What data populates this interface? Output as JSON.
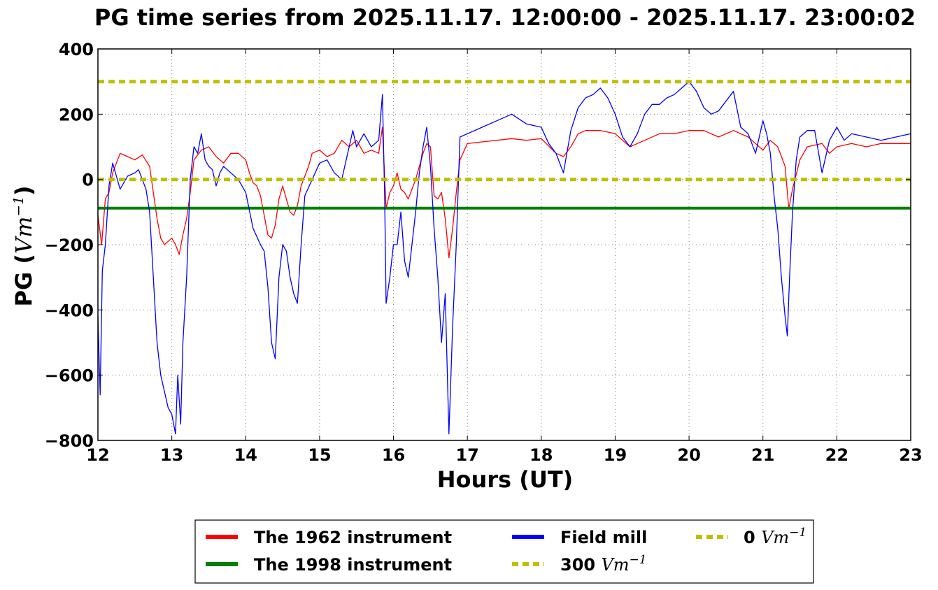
{
  "chart_data": {
    "type": "line",
    "title": "PG time series from 2025.11.17. 12:00:00 - 2025.11.17. 23:00:02",
    "xlabel": "Hours (UT)",
    "ylabel_main": "PG (",
    "ylabel_unit_base": "Vm",
    "ylabel_unit_exp": "−1",
    "ylabel_close": ")",
    "xlim": [
      12,
      23
    ],
    "ylim": [
      -800,
      400
    ],
    "x_ticks": [
      12,
      13,
      14,
      15,
      16,
      17,
      18,
      19,
      20,
      21,
      22,
      23
    ],
    "y_ticks": [
      400,
      200,
      0,
      -200,
      -400,
      -600,
      -800
    ],
    "y_tick_labels": [
      "400",
      "200",
      "0",
      "−200",
      "−400",
      "−600",
      "−800"
    ],
    "grid": true,
    "legend_placement": "bottom-center, outside plot",
    "series": [
      {
        "name": "The 1962 instrument",
        "color": "#ff0000",
        "style": "solid",
        "x": [
          12.0,
          12.05,
          12.1,
          12.15,
          12.2,
          12.3,
          12.4,
          12.5,
          12.6,
          12.7,
          12.75,
          12.8,
          12.85,
          12.9,
          12.95,
          13.0,
          13.05,
          13.1,
          13.15,
          13.2,
          13.25,
          13.3,
          13.4,
          13.5,
          13.6,
          13.7,
          13.8,
          13.9,
          14.0,
          14.05,
          14.1,
          14.15,
          14.2,
          14.3,
          14.35,
          14.4,
          14.45,
          14.5,
          14.55,
          14.6,
          14.65,
          14.7,
          14.75,
          14.8,
          14.85,
          14.9,
          15.0,
          15.1,
          15.2,
          15.3,
          15.4,
          15.5,
          15.6,
          15.7,
          15.8,
          15.85,
          15.9,
          15.95,
          16.0,
          16.05,
          16.1,
          16.15,
          16.2,
          16.3,
          16.4,
          16.45,
          16.5,
          16.55,
          16.6,
          16.65,
          16.7,
          16.75,
          16.8,
          16.85,
          16.9,
          17.0,
          17.2,
          17.4,
          17.6,
          17.8,
          18.0,
          18.2,
          18.3,
          18.4,
          18.5,
          18.6,
          18.8,
          19.0,
          19.2,
          19.4,
          19.6,
          19.8,
          20.0,
          20.2,
          20.4,
          20.6,
          20.8,
          21.0,
          21.1,
          21.2,
          21.3,
          21.35,
          21.4,
          21.5,
          21.6,
          21.8,
          21.9,
          22.0,
          22.2,
          22.4,
          22.6,
          22.8,
          23.0
        ],
        "values": [
          -110,
          -200,
          -60,
          -40,
          20,
          80,
          70,
          60,
          75,
          40,
          -40,
          -120,
          -180,
          -200,
          -190,
          -180,
          -200,
          -230,
          -170,
          -120,
          -40,
          60,
          90,
          100,
          70,
          50,
          80,
          80,
          60,
          20,
          -10,
          -20,
          -50,
          -170,
          -180,
          -140,
          -60,
          -20,
          -60,
          -100,
          -110,
          -80,
          -20,
          10,
          40,
          80,
          90,
          70,
          80,
          120,
          100,
          120,
          80,
          90,
          80,
          160,
          -90,
          -40,
          -20,
          20,
          -30,
          -40,
          -60,
          0,
          80,
          110,
          100,
          -50,
          -60,
          -40,
          -120,
          -240,
          -150,
          -40,
          60,
          110,
          115,
          120,
          125,
          120,
          125,
          80,
          70,
          100,
          140,
          150,
          150,
          140,
          100,
          120,
          140,
          140,
          150,
          150,
          130,
          150,
          130,
          90,
          120,
          100,
          40,
          -90,
          -30,
          60,
          100,
          110,
          80,
          100,
          110,
          100,
          110,
          110,
          110
        ]
      },
      {
        "name": "The 1998 instrument",
        "color": "#008000",
        "style": "solid",
        "x": [
          12,
          23
        ],
        "values": [
          -88,
          -88
        ]
      },
      {
        "name": "Field mill",
        "color": "#0000ff",
        "style": "solid",
        "x": [
          12.0,
          12.03,
          12.06,
          12.1,
          12.15,
          12.2,
          12.25,
          12.3,
          12.4,
          12.5,
          12.55,
          12.6,
          12.65,
          12.7,
          12.75,
          12.8,
          12.85,
          12.9,
          12.95,
          13.0,
          13.05,
          13.08,
          13.12,
          13.15,
          13.2,
          13.25,
          13.3,
          13.35,
          13.4,
          13.45,
          13.5,
          13.55,
          13.6,
          13.65,
          13.7,
          13.8,
          13.9,
          14.0,
          14.1,
          14.2,
          14.25,
          14.3,
          14.35,
          14.4,
          14.45,
          14.5,
          14.55,
          14.6,
          14.65,
          14.7,
          14.75,
          14.8,
          14.9,
          15.0,
          15.1,
          15.2,
          15.3,
          15.4,
          15.45,
          15.5,
          15.6,
          15.7,
          15.8,
          15.85,
          15.88,
          15.9,
          15.95,
          16.0,
          16.05,
          16.1,
          16.15,
          16.2,
          16.3,
          16.35,
          16.4,
          16.45,
          16.5,
          16.55,
          16.6,
          16.65,
          16.7,
          16.75,
          16.8,
          16.85,
          16.9,
          17.0,
          17.2,
          17.4,
          17.6,
          17.8,
          18.0,
          18.1,
          18.2,
          18.3,
          18.4,
          18.5,
          18.6,
          18.7,
          18.8,
          18.9,
          19.0,
          19.1,
          19.2,
          19.3,
          19.4,
          19.5,
          19.6,
          19.7,
          19.8,
          19.9,
          20.0,
          20.1,
          20.2,
          20.3,
          20.4,
          20.5,
          20.6,
          20.7,
          20.8,
          20.9,
          21.0,
          21.05,
          21.1,
          21.15,
          21.2,
          21.25,
          21.3,
          21.33,
          21.36,
          21.4,
          21.45,
          21.5,
          21.6,
          21.7,
          21.8,
          21.9,
          22.0,
          22.1,
          22.2,
          22.4,
          22.6,
          22.8,
          23.0
        ],
        "values": [
          -420,
          -660,
          -280,
          -200,
          -20,
          50,
          10,
          -30,
          10,
          20,
          30,
          0,
          -30,
          -100,
          -300,
          -500,
          -600,
          -650,
          -700,
          -720,
          -780,
          -600,
          -750,
          -500,
          -300,
          0,
          100,
          80,
          140,
          60,
          40,
          30,
          -20,
          20,
          40,
          20,
          0,
          -40,
          -150,
          -200,
          -220,
          -330,
          -500,
          -550,
          -300,
          -200,
          -220,
          -300,
          -350,
          -380,
          -200,
          -50,
          0,
          50,
          60,
          20,
          0,
          100,
          150,
          100,
          140,
          100,
          120,
          260,
          -50,
          -380,
          -300,
          -200,
          -200,
          -100,
          -250,
          -300,
          -100,
          20,
          100,
          160,
          40,
          -150,
          -300,
          -500,
          -350,
          -780,
          -450,
          -200,
          130,
          140,
          160,
          180,
          200,
          170,
          160,
          110,
          80,
          20,
          150,
          220,
          250,
          260,
          280,
          250,
          200,
          130,
          100,
          140,
          200,
          230,
          230,
          250,
          260,
          280,
          300,
          270,
          220,
          200,
          210,
          240,
          270,
          160,
          140,
          80,
          180,
          140,
          80,
          -50,
          -150,
          -300,
          -420,
          -480,
          -300,
          -100,
          60,
          130,
          150,
          150,
          20,
          120,
          160,
          120,
          140,
          130,
          120,
          130,
          140
        ]
      },
      {
        "name": "300 Vm−1",
        "legend_label": "300",
        "color": "#bfbf00",
        "style": "dashed",
        "x": [
          12,
          23
        ],
        "values": [
          300,
          300
        ]
      },
      {
        "name": "0 Vm−1",
        "legend_label": "0",
        "color": "#bfbf00",
        "style": "dashed",
        "x": [
          12,
          23
        ],
        "values": [
          0,
          0
        ]
      }
    ],
    "legend": {
      "unit_base": "Vm",
      "unit_exp": "−1"
    }
  }
}
